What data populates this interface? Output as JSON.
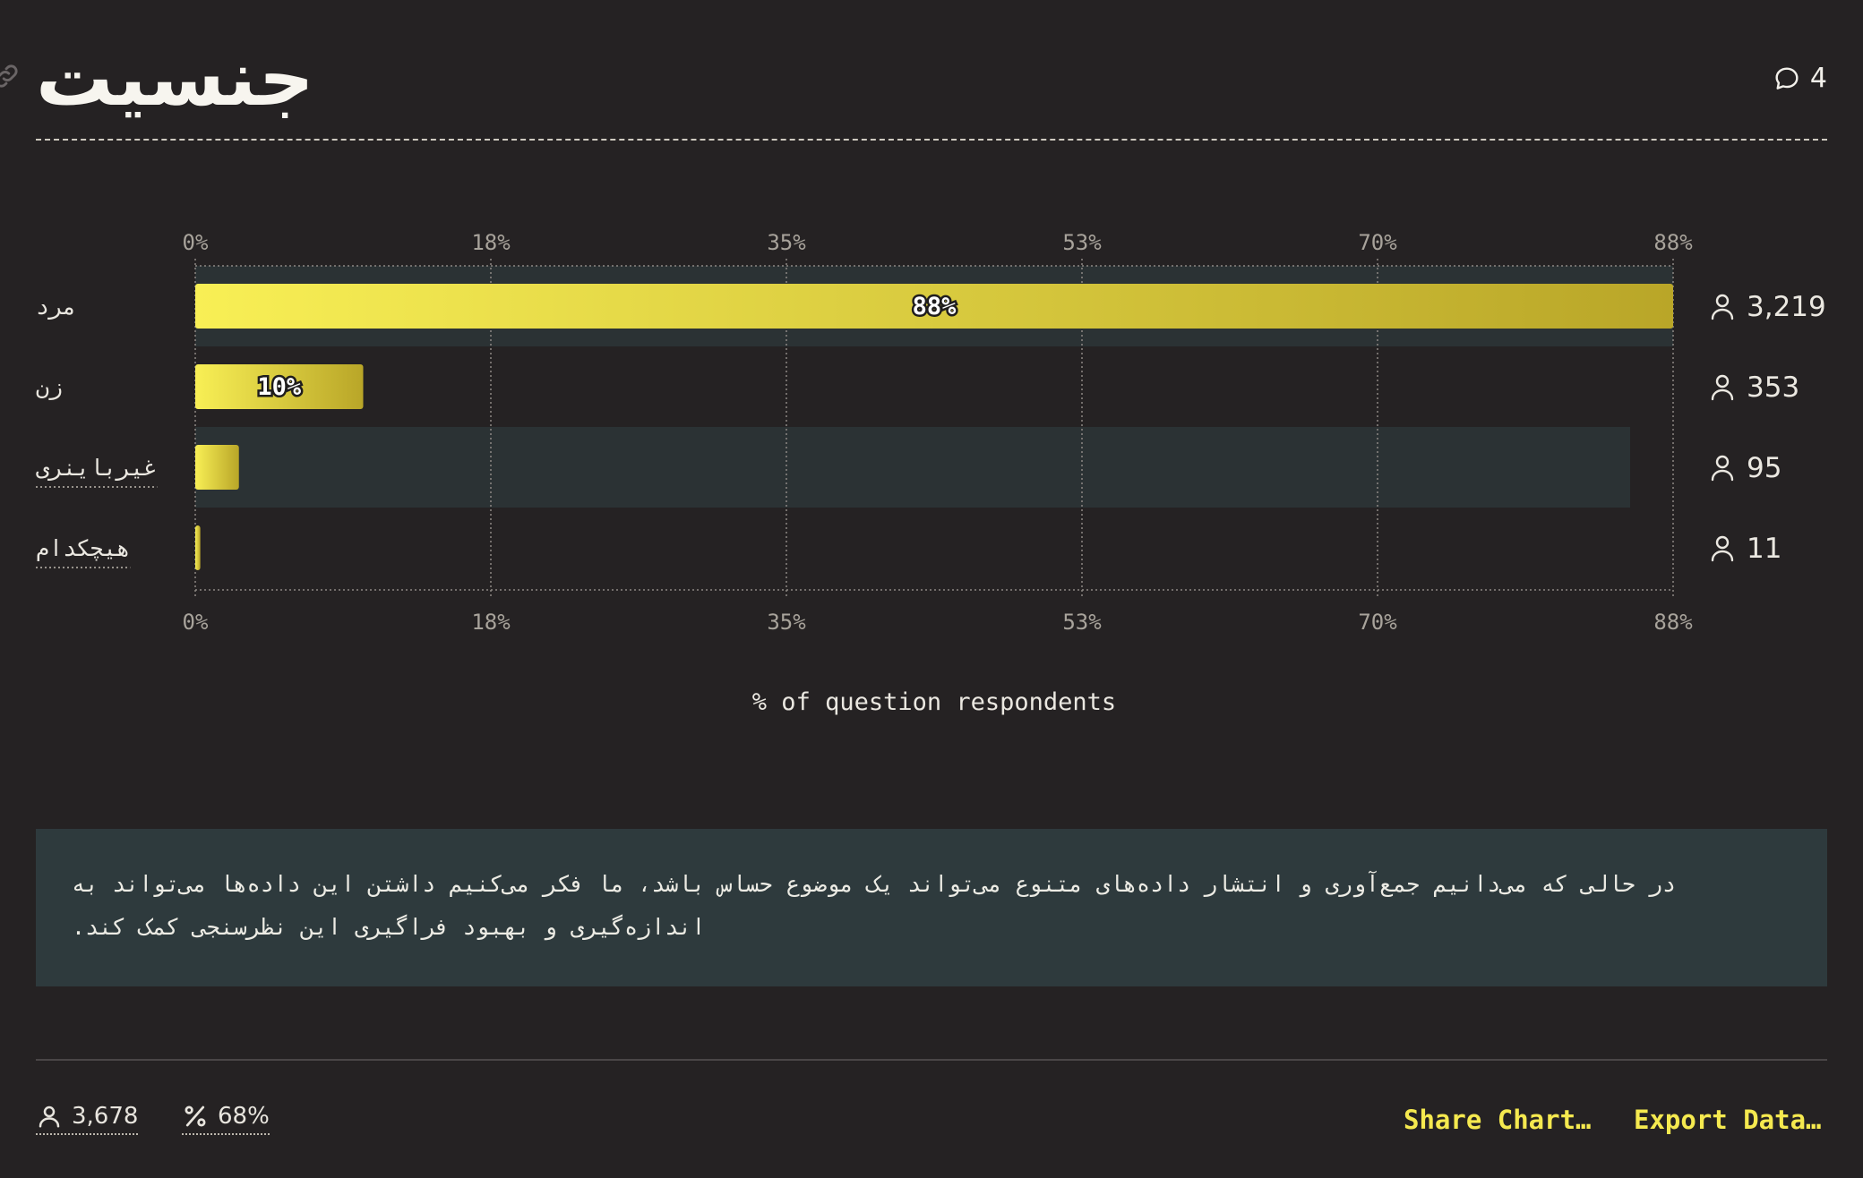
{
  "header": {
    "title": "جنسیت",
    "comment_count": "4"
  },
  "chart_data": {
    "type": "bar",
    "orientation": "horizontal",
    "categories": [
      "مرد",
      "زن",
      "غیرباینری",
      "هیچکدام"
    ],
    "values": [
      88,
      10,
      2.6,
      0.3
    ],
    "value_labels": [
      "88%",
      "10%",
      "",
      ""
    ],
    "counts": [
      "3,219",
      "353",
      "95",
      "11"
    ],
    "xlim": [
      0,
      88
    ],
    "x_ticks": [
      "0%",
      "18%",
      "35%",
      "53%",
      "70%",
      "88%"
    ],
    "xlabel": "% of question respondents",
    "grid": true,
    "bar_gradient": [
      "#f8ef55",
      "#b9a628"
    ]
  },
  "note": {
    "text": "در حالی که می‌دانیم جمع‌آوری و انتشار داده‌های متنوع می‌تواند یک موضوع حساس باشد، ما فکر می‌کنیم داشتن این داده‌ها می‌تواند به اندازه‌گیری و بهبود فراگیری این نظرسنجی کمک کند."
  },
  "footer": {
    "respondents": "3,678",
    "percent": "68%",
    "share_label": "Share Chart…",
    "export_label": "Export Data…"
  },
  "colors": {
    "accent": "#f5e94f",
    "note_bg": "#2e3a3d",
    "row_highlight": "#2b3234",
    "background": "#252223"
  }
}
